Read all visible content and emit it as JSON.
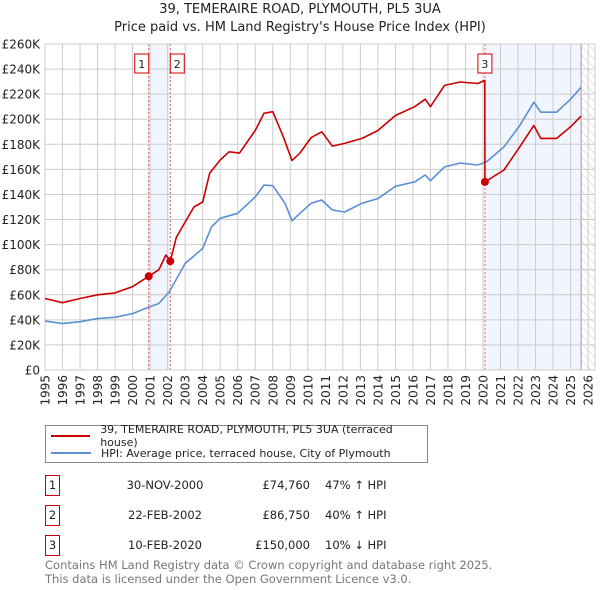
{
  "title": "39, TEMERAIRE ROAD, PLYMOUTH, PL5 3UA",
  "subtitle": "Price paid vs. HM Land Registry's House Price Index (HPI)",
  "chart_data": {
    "type": "line",
    "title": "39, TEMERAIRE ROAD, PLYMOUTH, PL5 3UA — Price paid vs. HM Land Registry's House Price Index (HPI)",
    "xlabel": "",
    "ylabel": "",
    "xlim": [
      1995,
      2026
    ],
    "ylim": [
      0,
      260000
    ],
    "x_ticks": [
      "1995",
      "1996",
      "1997",
      "1998",
      "1999",
      "2000",
      "2001",
      "2002",
      "2003",
      "2004",
      "2005",
      "2006",
      "2007",
      "2008",
      "2009",
      "2010",
      "2011",
      "2012",
      "2013",
      "2014",
      "2015",
      "2016",
      "2017",
      "2018",
      "2019",
      "2020",
      "2021",
      "2022",
      "2023",
      "2024",
      "2025",
      "2026"
    ],
    "y_ticks": [
      {
        "v": 0,
        "label": "£0"
      },
      {
        "v": 20000,
        "label": "£20K"
      },
      {
        "v": 40000,
        "label": "£40K"
      },
      {
        "v": 60000,
        "label": "£60K"
      },
      {
        "v": 80000,
        "label": "£80K"
      },
      {
        "v": 100000,
        "label": "£100K"
      },
      {
        "v": 120000,
        "label": "£120K"
      },
      {
        "v": 140000,
        "label": "£140K"
      },
      {
        "v": 160000,
        "label": "£160K"
      },
      {
        "v": 180000,
        "label": "£180K"
      },
      {
        "v": 200000,
        "label": "£200K"
      },
      {
        "v": 220000,
        "label": "£220K"
      },
      {
        "v": 240000,
        "label": "£240K"
      },
      {
        "v": 260000,
        "label": "£260K"
      }
    ],
    "grid": true,
    "series": [
      {
        "name": "39, TEMERAIRE ROAD, PLYMOUTH, PL5 3UA (terraced house)",
        "color": "#cc0000",
        "x": [
          1995,
          1996,
          1997,
          1998,
          1999,
          2000,
          2000.92,
          2001.5,
          2001.9,
          2002.15,
          2002.5,
          2003,
          2003.5,
          2004,
          2004.4,
          2005,
          2005.5,
          2006.1,
          2007,
          2007.5,
          2008,
          2008.6,
          2009.1,
          2009.55,
          2010.2,
          2010.8,
          2011.4,
          2012.1,
          2013.1,
          2014,
          2015,
          2016.1,
          2016.7,
          2017,
          2017.8,
          2018.7,
          2019.7,
          2020.1,
          2020.11,
          2021.2,
          2022.1,
          2022.9,
          2023.3,
          2024.2,
          2025,
          2025.6
        ],
        "y": [
          57000,
          53700,
          57000,
          60000,
          61500,
          66500,
          74760,
          80000,
          91700,
          86750,
          106000,
          118000,
          130000,
          134000,
          157000,
          167500,
          174000,
          173000,
          191000,
          204700,
          206000,
          186000,
          167000,
          173000,
          185500,
          190000,
          178600,
          180700,
          184700,
          191000,
          203000,
          210000,
          216000,
          210000,
          227000,
          229700,
          228500,
          231000,
          150000,
          159500,
          178000,
          195000,
          184700,
          184700,
          194000,
          202500
        ]
      },
      {
        "name": "HPI: Average price, terraced house, City of Plymouth",
        "color": "#5b8fd4",
        "x": [
          1995,
          1996,
          1997,
          1998,
          1999,
          2000,
          2000.9,
          2001.5,
          2002.1,
          2003,
          2004,
          2004.5,
          2005,
          2006,
          2007,
          2007.5,
          2008,
          2008.7,
          2009.1,
          2009.55,
          2010.2,
          2010.8,
          2011.4,
          2012.1,
          2013.1,
          2014,
          2015,
          2016.1,
          2016.7,
          2017,
          2017.8,
          2018.7,
          2019.7,
          2020.2,
          2021.2,
          2022.1,
          2022.9,
          2023.3,
          2024.2,
          2025,
          2025.6
        ],
        "y": [
          39000,
          37000,
          38500,
          41000,
          42000,
          45000,
          50000,
          53000,
          62500,
          85000,
          97000,
          114000,
          121000,
          125000,
          138000,
          147500,
          147000,
          133000,
          119000,
          125000,
          133000,
          135600,
          127600,
          126000,
          133000,
          136700,
          146500,
          150000,
          155500,
          151000,
          162000,
          165000,
          163500,
          166000,
          178000,
          195000,
          213600,
          205600,
          205600,
          216000,
          225500
        ]
      }
    ],
    "sales": [
      {
        "id": "1",
        "x": 2000.92,
        "y": 74760
      },
      {
        "id": "2",
        "x": 2002.15,
        "y": 86750
      },
      {
        "id": "3",
        "x": 2020.11,
        "y": 150000
      }
    ],
    "shaded_ranges": [
      [
        2000.92,
        2002.15
      ],
      [
        2020.11,
        2025.6
      ]
    ],
    "forecast_hatched_from": 2025.6,
    "legend_position": "below"
  },
  "legend": {
    "property": "39, TEMERAIRE ROAD, PLYMOUTH, PL5 3UA (terraced house)",
    "hpi": "HPI: Average price, terraced house, City of Plymouth"
  },
  "transactions": [
    {
      "num": "1",
      "date": "30-NOV-2000",
      "price": "£74,760",
      "hpi": "47% ↑ HPI"
    },
    {
      "num": "2",
      "date": "22-FEB-2002",
      "price": "£86,750",
      "hpi": "40% ↑ HPI"
    },
    {
      "num": "3",
      "date": "10-FEB-2020",
      "price": "£150,000",
      "hpi": "10% ↓ HPI"
    }
  ],
  "footer": {
    "line1": "Contains HM Land Registry data © Crown copyright and database right 2025.",
    "line2": "This data is licensed under the Open Government Licence v3.0."
  }
}
